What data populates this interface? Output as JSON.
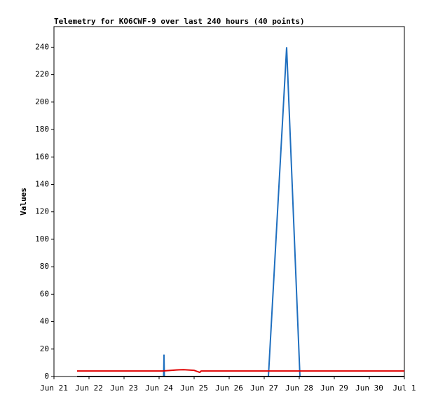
{
  "chart_data": {
    "type": "line",
    "title": "Telemetry for KO6CWF-9 over last 240 hours (40 points)",
    "y_label": "Values",
    "xlim": [
      0,
      10
    ],
    "xticks": [
      {
        "value": 0,
        "label": "Jun 21"
      },
      {
        "value": 1,
        "label": "Jun 22"
      },
      {
        "value": 2,
        "label": "Jun 23"
      },
      {
        "value": 3,
        "label": "Jun 24"
      },
      {
        "value": 4,
        "label": "Jun 25"
      },
      {
        "value": 5,
        "label": "Jun 26"
      },
      {
        "value": 6,
        "label": "Jun 27"
      },
      {
        "value": 7,
        "label": "Jun 28"
      },
      {
        "value": 8,
        "label": "Jun 29"
      },
      {
        "value": 9,
        "label": "Jun 30"
      },
      {
        "value": 10,
        "label": "Jul 1"
      }
    ],
    "ylim": [
      0,
      255
    ],
    "yticks": [
      0,
      20,
      40,
      60,
      80,
      100,
      120,
      140,
      160,
      180,
      200,
      220,
      240
    ],
    "series": [
      {
        "color": "#1f6fbf",
        "x": [
          0.66,
          3.13,
          3.14,
          3.15,
          6.12,
          6.64,
          7.02,
          10
        ],
        "values": [
          0,
          0,
          16,
          0,
          0,
          240,
          0,
          0
        ]
      },
      {
        "color": "#e00000",
        "x": [
          0.66,
          3.1,
          3.5,
          3.7,
          4.0,
          4.16,
          4.2,
          10
        ],
        "values": [
          4,
          4,
          4.8,
          5,
          4.5,
          3,
          4,
          4
        ]
      },
      {
        "color": "#000000",
        "x": [
          0.66,
          10
        ],
        "values": [
          0,
          0
        ]
      }
    ]
  }
}
